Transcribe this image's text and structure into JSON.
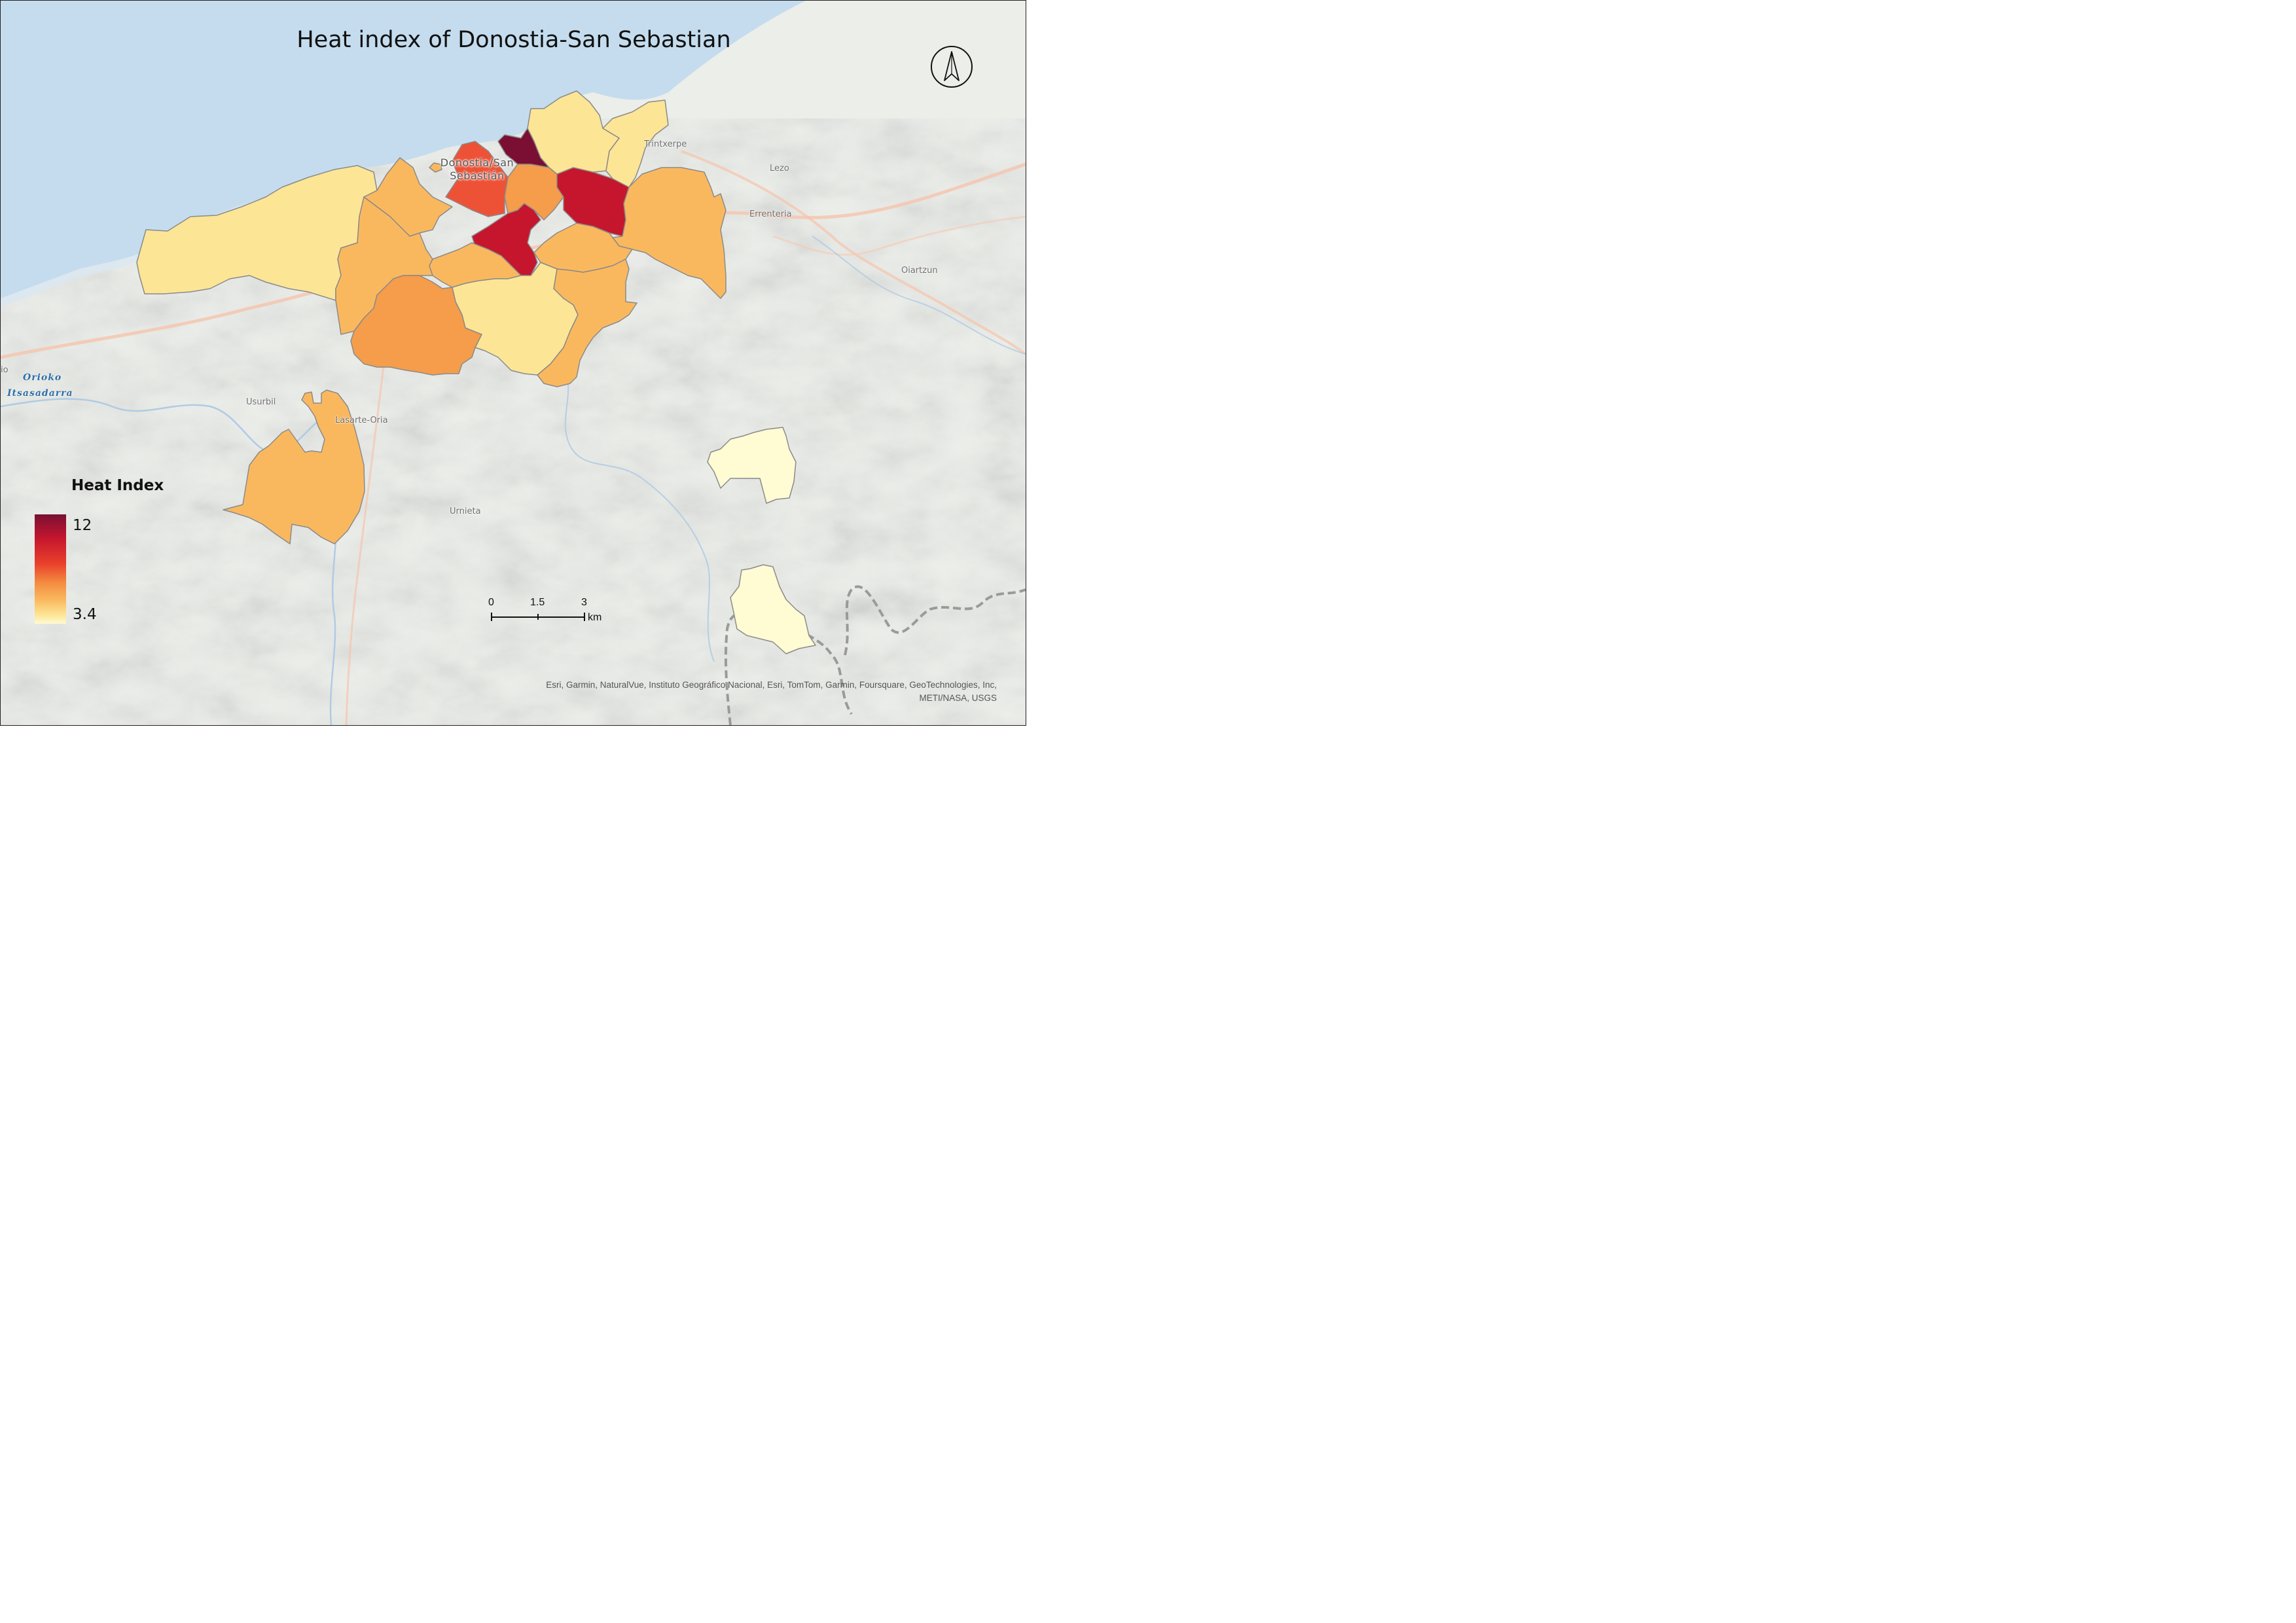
{
  "title": "Heat index of Donostia-San Sebastian",
  "city_label": [
    "Donostia/San",
    "Sebastián"
  ],
  "place_labels": {
    "trintxerpe": "Trintxerpe",
    "lezo": "Lezo",
    "errenteria": "Errenteria",
    "oiartzun": "Oiartzun",
    "usurbil": "Usurbil",
    "lasarte_oria": "Lasarte-Oria",
    "urnieta": "Urnieta",
    "edge_fragment": "io"
  },
  "water_label": [
    "Orioko",
    "Itsasadarra"
  ],
  "legend": {
    "title": "Heat Index",
    "max_label": "12",
    "min_label": "3.4",
    "max": 12,
    "min": 3.4,
    "ramp_colors": [
      "#7a0f33",
      "#c5162d",
      "#e9402b",
      "#f38a3f",
      "#fab85e",
      "#fde596",
      "#fffbd2"
    ]
  },
  "scale_bar": {
    "labels": [
      "0",
      "1.5",
      "3"
    ],
    "unit": "km"
  },
  "attribution": [
    "Esri, Garmin, NaturalVue, Instituto Geográfico Nacional, Esri, TomTom, Garmin, Foursquare, GeoTechnologies, Inc,",
    "METI/NASA, USGS"
  ],
  "colors": {
    "sea": "#c4dcee",
    "land": "#eceeea",
    "outline": "#8a8a8a",
    "class_1": "#7a0f33",
    "class_2": "#c5162d",
    "class_3": "#ee5236",
    "class_4": "#f59d4a",
    "class_5": "#fab85e",
    "class_6": "#fde596",
    "class_7": "#fffbd2"
  },
  "icons": {
    "north_arrow": "north-arrow-icon"
  }
}
